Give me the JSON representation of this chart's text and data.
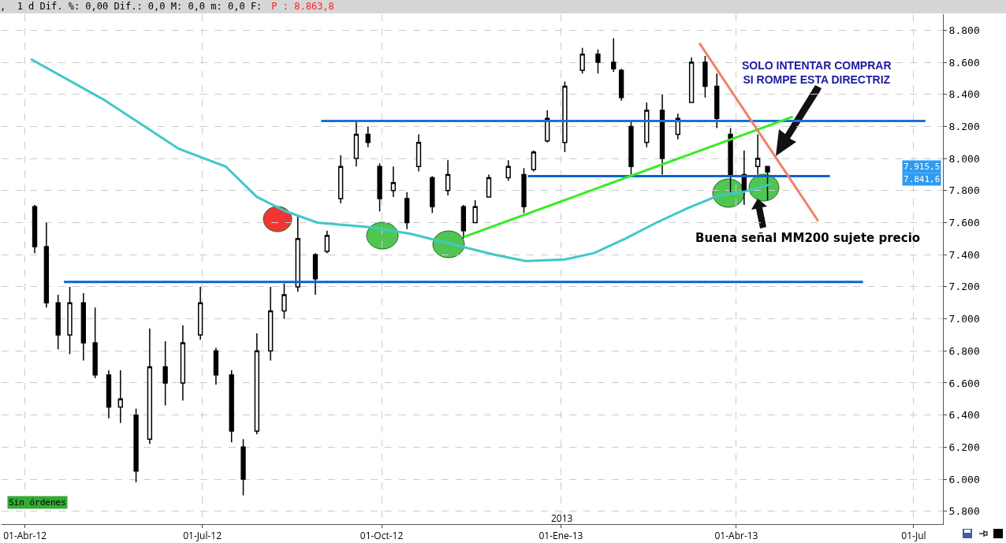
{
  "chart_data": {
    "type": "candlestick",
    "title": ",  1 d Dif. %: 0,00 Dif.: 0,0 M: 0,0 m: 0,0 F:",
    "subtitle": "P : 8.863,8",
    "annotations": [
      "SOLO INTENTAR COMPRAR\nSI ROMPE ESTA DIRECTRIZ",
      "Buena señal MM200 sujete precio",
      "Sin órdenes",
      "2013",
      "7.915,5",
      "7.841,6"
    ],
    "color": "#000000",
    "x": [
      "2012-04-06",
      "2012-04-12",
      "2012-04-18",
      "2012-04-24",
      "2012-05-01",
      "2012-05-07",
      "2012-05-14",
      "2012-05-20",
      "2012-05-28",
      "2012-06-04",
      "2012-06-12",
      "2012-06-21",
      "2012-06-30",
      "2012-07-08",
      "2012-07-16",
      "2012-07-22",
      "2012-07-29",
      "2012-08-05",
      "2012-08-12",
      "2012-08-19",
      "2012-08-28",
      "2012-09-03",
      "2012-09-10",
      "2012-09-18",
      "2012-09-24",
      "2012-09-30",
      "2012-10-07",
      "2012-10-14",
      "2012-10-20",
      "2012-10-27",
      "2012-11-04",
      "2012-11-12",
      "2012-11-18",
      "2012-11-25",
      "2012-12-05",
      "2012-12-13",
      "2012-12-18",
      "2012-12-25",
      "2013-01-03",
      "2013-01-12",
      "2013-01-20",
      "2013-01-28",
      "2013-02-01",
      "2013-02-06",
      "2013-02-14",
      "2013-02-22",
      "2013-03-02",
      "2013-03-09",
      "2013-03-16",
      "2013-03-22",
      "2013-03-29",
      "2013-04-05",
      "2013-04-12",
      "2013-04-17"
    ],
    "ohlc": [
      [
        7700,
        7710,
        7410,
        7450
      ],
      [
        7450,
        7600,
        7070,
        7100
      ],
      [
        7100,
        7150,
        6810,
        6900
      ],
      [
        6900,
        7200,
        6780,
        7100
      ],
      [
        7100,
        7160,
        6740,
        6850
      ],
      [
        6850,
        7070,
        6630,
        6650
      ],
      [
        6650,
        6680,
        6380,
        6450
      ],
      [
        6450,
        6680,
        6350,
        6500
      ],
      [
        6400,
        6440,
        5980,
        6050
      ],
      [
        6250,
        6940,
        6220,
        6700
      ],
      [
        6700,
        6860,
        6460,
        6600
      ],
      [
        6600,
        6960,
        6490,
        6850
      ],
      [
        6900,
        7200,
        6870,
        7100
      ],
      [
        6800,
        6820,
        6590,
        6650
      ],
      [
        6650,
        6680,
        6230,
        6300
      ],
      [
        6200,
        6250,
        5900,
        6000
      ],
      [
        6300,
        6910,
        6280,
        6800
      ],
      [
        6800,
        7200,
        6740,
        7050
      ],
      [
        7050,
        7220,
        7000,
        7150
      ],
      [
        7200,
        7640,
        7170,
        7500
      ],
      [
        7400,
        7410,
        7150,
        7250
      ],
      [
        7420,
        7550,
        7410,
        7520
      ],
      [
        7750,
        8020,
        7720,
        7950
      ],
      [
        8000,
        8230,
        7950,
        8150
      ],
      [
        8150,
        8200,
        8070,
        8100
      ],
      [
        7950,
        7970,
        7670,
        7750
      ],
      [
        7800,
        7950,
        7760,
        7850
      ],
      [
        7750,
        7790,
        7560,
        7600
      ],
      [
        7950,
        8150,
        7920,
        8100
      ],
      [
        7880,
        7890,
        7660,
        7700
      ],
      [
        7800,
        7990,
        7770,
        7900
      ],
      [
        7700,
        7710,
        7500,
        7550
      ],
      [
        7600,
        7740,
        7600,
        7700
      ],
      [
        7760,
        7900,
        7760,
        7880
      ],
      [
        7880,
        7990,
        7860,
        7950
      ],
      [
        7900,
        7940,
        7660,
        7700
      ],
      [
        7930,
        8050,
        7920,
        8040
      ],
      [
        8110,
        8300,
        8100,
        8250
      ],
      [
        8100,
        8480,
        8040,
        8450
      ],
      [
        8550,
        8690,
        8530,
        8650
      ],
      [
        8650,
        8680,
        8530,
        8600
      ],
      [
        8600,
        8750,
        8540,
        8560
      ],
      [
        8550,
        8560,
        8360,
        8380
      ],
      [
        8200,
        8230,
        7900,
        7950
      ],
      [
        8100,
        8350,
        8070,
        8300
      ],
      [
        8300,
        8400,
        7900,
        8000
      ],
      [
        8150,
        8280,
        8120,
        8250
      ],
      [
        8350,
        8630,
        8350,
        8600
      ],
      [
        8600,
        8640,
        8380,
        8450
      ],
      [
        8450,
        8530,
        8190,
        8250
      ],
      [
        8150,
        8190,
        7790,
        7900
      ],
      [
        7900,
        8050,
        7710,
        7800
      ],
      [
        7950,
        8150,
        7900,
        8000
      ],
      [
        7950,
        7950,
        7740,
        7915.5
      ]
    ],
    "series": [
      {
        "type": "line",
        "color": "#40c8c8",
        "x": [
          "2012-04-04",
          "2012-05-11",
          "2012-06-19",
          "2012-07-13",
          "2012-07-29",
          "2012-08-13",
          "2012-08-29",
          "2012-09-26",
          "2012-10-16",
          "2012-11-08",
          "2012-11-28",
          "2012-12-14",
          "2013-01-03",
          "2013-01-18",
          "2013-02-03",
          "2013-02-19",
          "2013-03-07",
          "2013-03-23",
          "2013-04-04",
          "2013-04-19"
        ],
        "values": [
          8620,
          8370,
          8060,
          7950,
          7760,
          7670,
          7600,
          7570,
          7530,
          7460,
          7400,
          7360,
          7370,
          7410,
          7500,
          7600,
          7690,
          7770,
          7790,
          7840
        ]
      },
      {
        "type": "line",
        "color": "#1e6fd9",
        "x": [
          "2012-08-31",
          "2013-07-07"
        ],
        "values": [
          8234,
          8234
        ]
      },
      {
        "type": "line",
        "color": "#0a64d2",
        "x": [
          "2012-04-21",
          "2013-06-05"
        ],
        "values": [
          7230,
          7230
        ]
      },
      {
        "type": "line",
        "color": "#0a64d2",
        "x": [
          "2012-12-15",
          "2013-05-19"
        ],
        "values": [
          7890,
          7890
        ]
      },
      {
        "type": "line",
        "color": "#33ee22",
        "x": [
          "2012-11-12",
          "2013-04-30"
        ],
        "values": [
          7510,
          8260
        ]
      },
      {
        "type": "line",
        "color": "#ee8466",
        "x": [
          "2013-03-13",
          "2013-05-13"
        ],
        "values": [
          8720,
          7610
        ]
      }
    ],
    "xlim": [
      "2012-03-20",
      "2013-07-16"
    ],
    "xticks": [
      {
        "value": "2012-04-01",
        "label": "01-Abr-12"
      },
      {
        "value": "2012-07-01",
        "label": "01-Jul-12"
      },
      {
        "value": "2012-10-01",
        "label": "01-Oct-12"
      },
      {
        "value": "2013-01-01",
        "label": "01-Ene-13"
      },
      {
        "value": "2013-04-01",
        "label": "01-Abr-13"
      },
      {
        "value": "2013-07-01",
        "label": "01-Jul"
      }
    ],
    "ylim": [
      5720,
      8900
    ],
    "yticks": [
      {
        "value": 5800,
        "label": "5.800"
      },
      {
        "value": 6000,
        "label": "6.000"
      },
      {
        "value": 6200,
        "label": "6.200"
      },
      {
        "value": 6400,
        "label": "6.400"
      },
      {
        "value": 6600,
        "label": "6.600"
      },
      {
        "value": 6800,
        "label": "6.800"
      },
      {
        "value": 7000,
        "label": "7.000"
      },
      {
        "value": 7200,
        "label": "7.200"
      },
      {
        "value": 7400,
        "label": "7.400"
      },
      {
        "value": 7600,
        "label": "7.600"
      },
      {
        "value": 7800,
        "label": "7.800"
      },
      {
        "value": 8000,
        "label": "8.000"
      },
      {
        "value": 8200,
        "label": "8.200"
      },
      {
        "value": 8400,
        "label": "8.400"
      },
      {
        "value": 8600,
        "label": "8.600"
      },
      {
        "value": 8800,
        "label": "8.800"
      }
    ],
    "grid": true
  }
}
